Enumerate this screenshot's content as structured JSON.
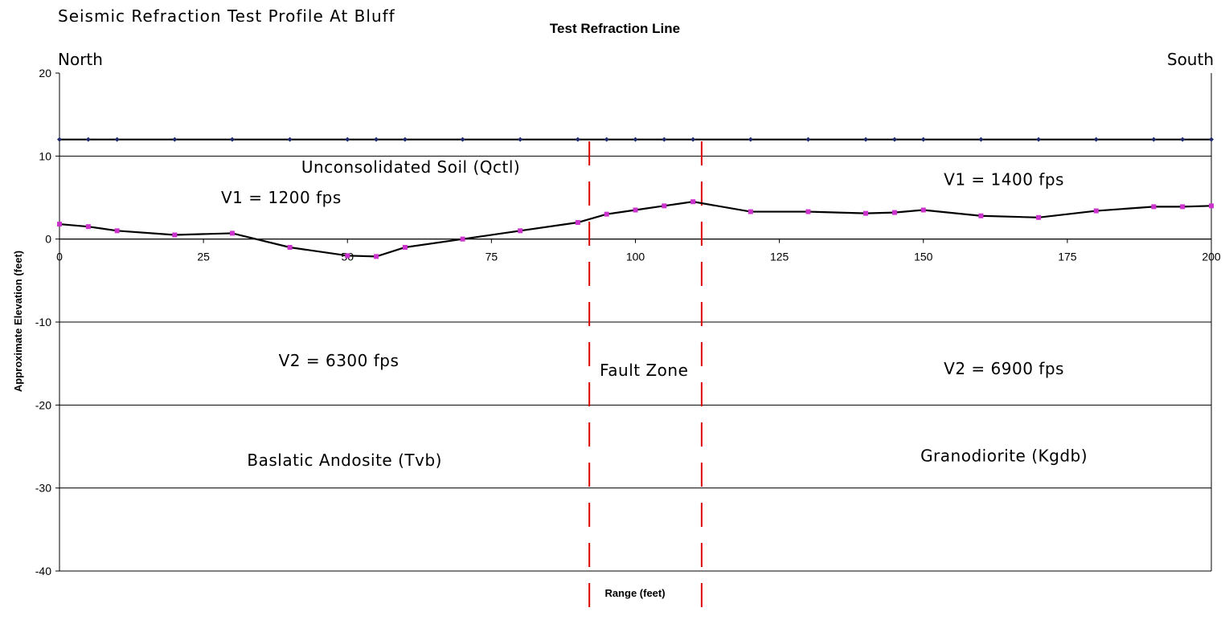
{
  "page_title": "Seismic Refraction Test Profile At Bluff",
  "direction_left": "North",
  "direction_right": "South",
  "chart_data": {
    "type": "line",
    "title": "Test Refraction Line",
    "xlabel": "Range (feet)",
    "ylabel": "Approximate Elevation (feet)",
    "xlim": [
      0,
      200
    ],
    "ylim": [
      -40,
      20
    ],
    "x_ticks": [
      0,
      25,
      50,
      75,
      100,
      125,
      150,
      175,
      200
    ],
    "y_ticks": [
      20,
      10,
      0,
      -10,
      -20,
      -30,
      -40
    ],
    "grid_y": true,
    "legend": "none",
    "series": [
      {
        "color": "#1f2a6b",
        "marker": "diamond",
        "points": [
          [
            0,
            12
          ],
          [
            5,
            12
          ],
          [
            10,
            12
          ],
          [
            20,
            12
          ],
          [
            30,
            12
          ],
          [
            40,
            12
          ],
          [
            50,
            12
          ],
          [
            55,
            12
          ],
          [
            60,
            12
          ],
          [
            70,
            12
          ],
          [
            80,
            12
          ],
          [
            90,
            12
          ],
          [
            95,
            12
          ],
          [
            100,
            12
          ],
          [
            105,
            12
          ],
          [
            110,
            12
          ],
          [
            120,
            12
          ],
          [
            130,
            12
          ],
          [
            140,
            12
          ],
          [
            145,
            12
          ],
          [
            150,
            12
          ],
          [
            160,
            12
          ],
          [
            170,
            12
          ],
          [
            180,
            12
          ],
          [
            190,
            12
          ],
          [
            195,
            12
          ],
          [
            200,
            12
          ]
        ]
      },
      {
        "color": "#cc33cc",
        "marker": "square",
        "points": [
          [
            0,
            1.8
          ],
          [
            5,
            1.5
          ],
          [
            10,
            1.0
          ],
          [
            20,
            0.5
          ],
          [
            30,
            0.7
          ],
          [
            40,
            -1.0
          ],
          [
            50,
            -2.0
          ],
          [
            55,
            -2.1
          ],
          [
            60,
            -1.0
          ],
          [
            70,
            0
          ],
          [
            80,
            1.0
          ],
          [
            90,
            2.0
          ],
          [
            95,
            3.0
          ],
          [
            100,
            3.5
          ],
          [
            105,
            4.0
          ],
          [
            110,
            4.5
          ],
          [
            120,
            3.3
          ],
          [
            130,
            3.3
          ],
          [
            140,
            3.1
          ],
          [
            145,
            3.2
          ],
          [
            150,
            3.5
          ],
          [
            160,
            2.8
          ],
          [
            170,
            2.6
          ],
          [
            180,
            3.4
          ],
          [
            190,
            3.9
          ],
          [
            195,
            3.9
          ],
          [
            200,
            4.0
          ]
        ]
      }
    ],
    "fault_lines_x": [
      92,
      111.5
    ],
    "fault_line_color": "#dd0000",
    "annotations": [
      {
        "text": "Unconsolidated Soil (Qctl)",
        "x": 61,
        "y": 8
      },
      {
        "text": "V1 = 1200 fps",
        "x": 38.5,
        "y": 4.3
      },
      {
        "text": "V1 = 1400 fps",
        "x": 164,
        "y": 6.5
      },
      {
        "text": "V2 = 6300 fps",
        "x": 48.5,
        "y": -15.3
      },
      {
        "text": "Fault Zone",
        "x": 101.5,
        "y": -16.5
      },
      {
        "text": "V2 = 6900 fps",
        "x": 164,
        "y": -16.3
      },
      {
        "text": "Baslatic Andosite (Tvb)",
        "x": 49.5,
        "y": -27.3
      },
      {
        "text": "Granodiorite (Kgdb)",
        "x": 164,
        "y": -26.8
      }
    ]
  }
}
